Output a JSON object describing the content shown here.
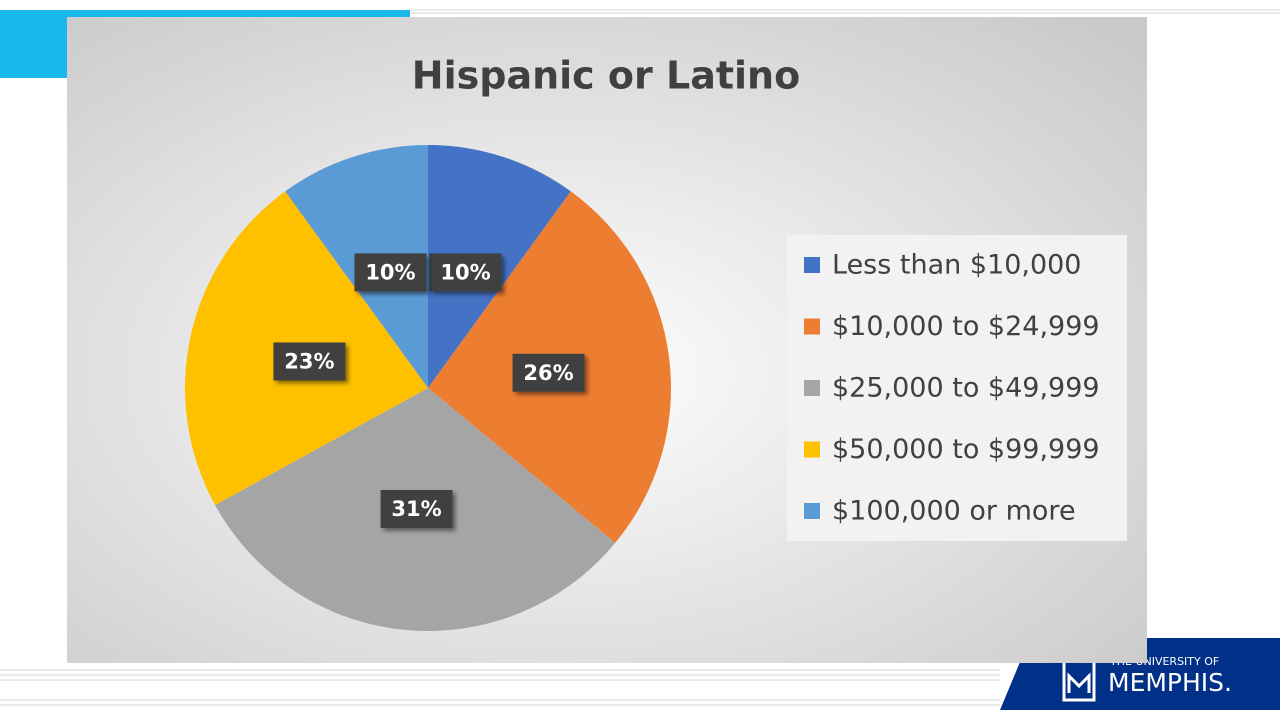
{
  "chart_data": {
    "type": "pie",
    "title": "Hispanic or Latino",
    "categories": [
      "Less than $10,000",
      "$10,000 to $24,999",
      "$25,000 to $49,999",
      "$50,000 to $99,999",
      "$100,000 or more"
    ],
    "values": [
      10,
      26,
      31,
      23,
      10
    ],
    "value_labels": [
      "10%",
      "26%",
      "31%",
      "23%",
      "10%"
    ],
    "colors": [
      "#4472c4",
      "#ed7d31",
      "#a5a5a5",
      "#ffc000",
      "#5b9bd5"
    ],
    "legend": "right"
  },
  "logo": {
    "line1": "THE UNIVERSITY OF",
    "line2": "MEMPHIS."
  }
}
